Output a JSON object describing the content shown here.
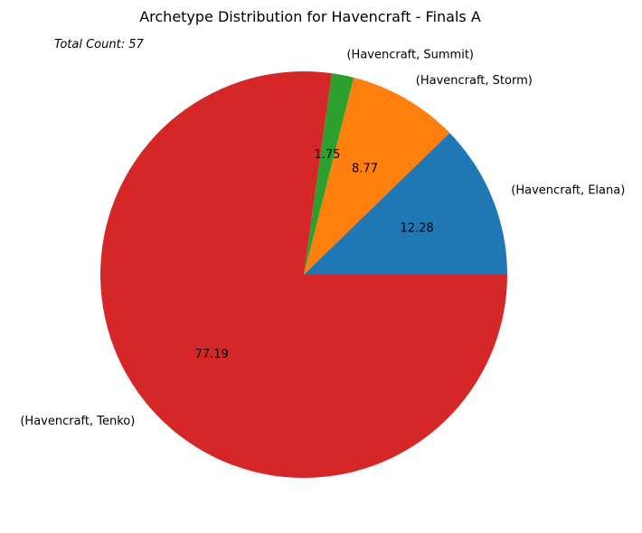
{
  "chart_data": {
    "type": "pie",
    "title": "Archetype Distribution for Havencraft - Finals A",
    "annotation": "Total Count: 57",
    "labels": [
      "(Havencraft, Elana)",
      "(Havencraft, Storm)",
      "(Havencraft, Summit)",
      "(Havencraft, Tenko)"
    ],
    "values": [
      12.28,
      8.77,
      1.75,
      77.19
    ],
    "value_labels": [
      "12.28",
      "8.77",
      "1.75",
      "77.19"
    ],
    "colors": [
      "#1f77b4",
      "#ff7f0e",
      "#2ca02c",
      "#d62728"
    ],
    "start_angle_deg": 0,
    "direction": "counterclockwise"
  }
}
